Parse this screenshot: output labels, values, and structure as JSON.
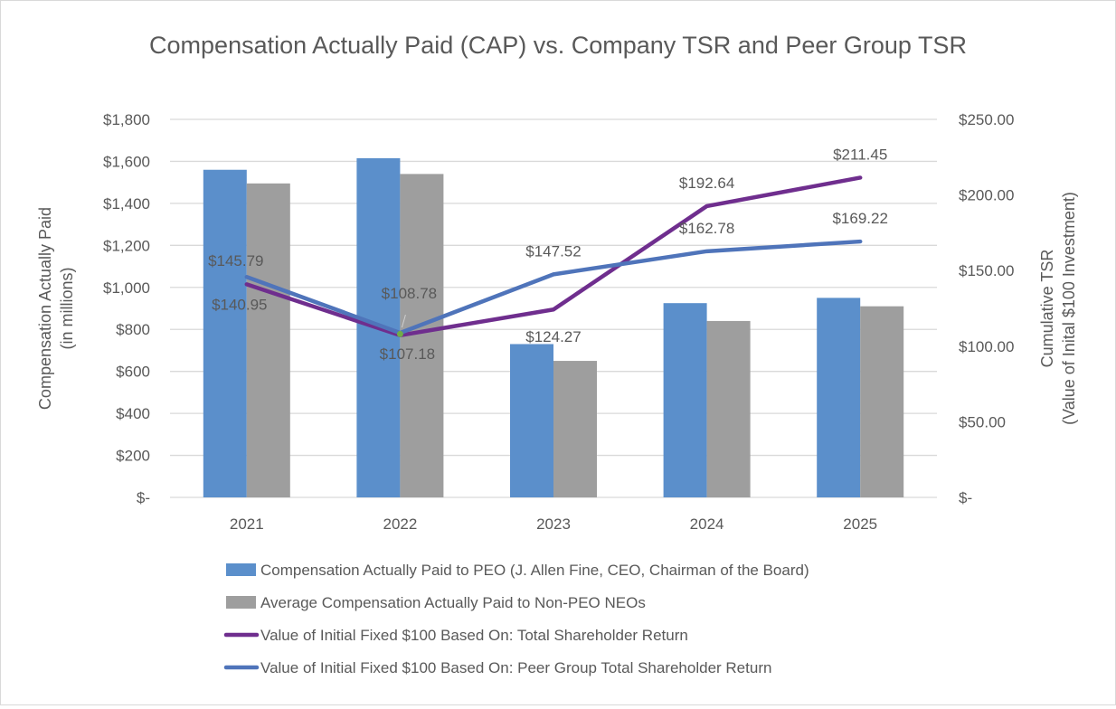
{
  "chart_data": {
    "type": "bar",
    "title": "Compensation Actually Paid (CAP) vs. Company TSR and Peer Group TSR",
    "categories": [
      "2021",
      "2022",
      "2023",
      "2024",
      "2025"
    ],
    "y_left": {
      "label_lines": [
        "Compensation Actually Paid",
        "(in millions)"
      ],
      "range": [
        0,
        1800
      ],
      "ticks": [
        0,
        200,
        400,
        600,
        800,
        1000,
        1200,
        1400,
        1600,
        1800
      ],
      "tick_labels": [
        "$-",
        "$200",
        "$400",
        "$600",
        "$800",
        "$1,000",
        "$1,200",
        "$1,400",
        "$1,600",
        "$1,800"
      ]
    },
    "y_right": {
      "label_lines": [
        "Cumulative TSR",
        "(Value of Inital $100 Investment)"
      ],
      "range": [
        0,
        250
      ],
      "ticks": [
        0,
        50,
        100,
        150,
        200,
        250
      ],
      "tick_labels": [
        "$-",
        "$50.00",
        "$100.00",
        "$150.00",
        "$200.00",
        "$250.00"
      ]
    },
    "grid": true,
    "legend_position": "bottom",
    "series": [
      {
        "name": "Compensation Actually Paid to PEO (J. Allen Fine, CEO, Chairman of the Board)",
        "type": "bar",
        "axis": "left",
        "color": "#5B8FCB",
        "values": [
          1560,
          1615,
          730,
          925,
          950
        ]
      },
      {
        "name": "Average Compensation Actually Paid to Non-PEO NEOs",
        "type": "bar",
        "axis": "left",
        "color": "#9E9E9E",
        "values": [
          1495,
          1540,
          650,
          840,
          910
        ]
      },
      {
        "name": "Value of Initial Fixed $100 Based On: Total Shareholder Return",
        "type": "line",
        "axis": "right",
        "color": "#6F2E8E",
        "values": [
          140.95,
          107.18,
          124.27,
          192.64,
          211.45
        ],
        "labels": [
          "$140.95",
          "$107.18",
          "$124.27",
          "$192.64",
          "$211.45"
        ]
      },
      {
        "name": "Value of Initial Fixed $100 Based On: Peer Group Total Shareholder Return",
        "type": "line",
        "axis": "right",
        "color": "#4F74BA",
        "values": [
          145.79,
          108.78,
          147.52,
          162.78,
          169.22
        ],
        "labels": [
          "$145.79",
          "$108.78",
          "$147.52",
          "$162.78",
          "$169.22"
        ]
      }
    ]
  }
}
